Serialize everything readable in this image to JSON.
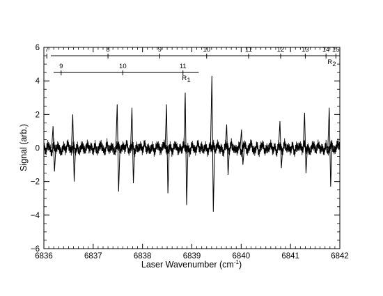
{
  "chart_data": {
    "type": "line",
    "title": "",
    "xlabel": "Laser Wavenumber (cm",
    "xlabel_sup": "-1",
    "xlabel_close": ")",
    "ylabel": "Signal (arb.)",
    "xlim": [
      6836,
      6842
    ],
    "ylim": [
      -6,
      6
    ],
    "x_ticks": [
      6836,
      6837,
      6838,
      6839,
      6840,
      6841,
      6842
    ],
    "x_tick_labels": [
      "6836",
      "6837",
      "6838",
      "6839",
      "6840",
      "6841",
      "6842"
    ],
    "y_ticks": [
      -6,
      -4,
      -2,
      0,
      2,
      4,
      6
    ],
    "y_tick_labels": [
      "−6",
      "−4",
      "−2",
      "0",
      "2",
      "4",
      "6"
    ],
    "grid": false,
    "legend": "none",
    "trace_color": "#000000",
    "series": [
      {
        "x": [
          6836.0,
          6836.04,
          6836.08,
          6836.12,
          6836.16,
          6836.2,
          6836.24,
          6836.28,
          6836.32,
          6836.36,
          6836.4,
          6836.44,
          6836.48,
          6836.52,
          6836.56,
          6836.6,
          6836.64,
          6836.68,
          6836.72,
          6836.76,
          6836.8,
          6836.84,
          6836.88,
          6836.92,
          6836.96,
          6837.0,
          6837.04,
          6837.08,
          6837.12,
          6837.16,
          6837.2,
          6837.24,
          6837.28,
          6837.32,
          6837.36,
          6837.4,
          6837.44,
          6837.48,
          6837.52,
          6837.56,
          6837.6,
          6837.64,
          6837.68,
          6837.72,
          6837.76,
          6837.8,
          6837.84,
          6837.88,
          6837.92,
          6837.96,
          6838.0,
          6838.04,
          6838.08,
          6838.12,
          6838.16,
          6838.2,
          6838.24,
          6838.28,
          6838.32,
          6838.36,
          6838.4,
          6838.44,
          6838.48,
          6838.52,
          6838.56,
          6838.6,
          6838.64,
          6838.68,
          6838.72,
          6838.76,
          6838.8,
          6838.84,
          6838.88,
          6838.92,
          6838.96,
          6839.0,
          6839.04,
          6839.08,
          6839.12,
          6839.16,
          6839.2,
          6839.24,
          6839.28,
          6839.32,
          6839.36,
          6839.4,
          6839.44,
          6839.48,
          6839.52,
          6839.56,
          6839.6,
          6839.64,
          6839.68,
          6839.72,
          6839.76,
          6839.8,
          6839.84,
          6839.88,
          6839.92,
          6839.96,
          6840.0,
          6840.04,
          6840.08,
          6840.12,
          6840.16,
          6840.2,
          6840.24,
          6840.28,
          6840.32,
          6840.36,
          6840.4,
          6840.44,
          6840.48,
          6840.52,
          6840.56,
          6840.6,
          6840.64,
          6840.68,
          6840.72,
          6840.76,
          6840.8,
          6840.84,
          6840.88,
          6840.92,
          6840.96,
          6841.0,
          6841.04,
          6841.08,
          6841.12,
          6841.16,
          6841.2,
          6841.24,
          6841.28,
          6841.32,
          6841.36,
          6841.4,
          6841.44,
          6841.48,
          6841.52,
          6841.56,
          6841.6,
          6841.64,
          6841.68,
          6841.72,
          6841.76,
          6841.8,
          6841.84,
          6841.88,
          6841.92,
          6841.96,
          6842.0
        ],
        "y": [
          0.1,
          -0.2,
          0.2,
          0.0,
          -0.3,
          0.3,
          -0.2,
          0.2,
          -0.1,
          -0.3,
          0.2,
          -0.2,
          0.3,
          0.0,
          -0.2,
          0.2,
          -0.2,
          0.1,
          -0.3,
          0.2,
          0.0,
          -0.2,
          0.3,
          -0.1,
          0.1,
          -0.2,
          0.2,
          -0.3,
          0.1,
          0.2,
          -0.1,
          -0.2,
          0.3,
          -0.2,
          0.1,
          0.0,
          -0.3,
          0.2,
          0.1,
          -0.2,
          0.2,
          -0.1,
          0.3,
          -0.2,
          0.0,
          0.2,
          -0.3,
          0.1,
          -0.1,
          0.2,
          -0.2,
          0.3,
          -0.1,
          0.0,
          -0.2,
          0.2,
          -0.3,
          0.1,
          0.2,
          -0.2,
          0.0,
          0.3,
          -0.1,
          -0.2,
          0.2,
          -0.3,
          0.1,
          0.2,
          -0.2,
          0.0,
          -0.1,
          0.3,
          -0.2,
          0.1,
          -0.3,
          0.2,
          0.0,
          -0.2,
          0.3,
          -0.1,
          0.1,
          -0.2,
          0.2,
          -0.3,
          0.1,
          0.0,
          0.2,
          -0.2,
          0.3,
          -0.1,
          0.0,
          -0.3,
          0.2,
          0.1,
          -0.2,
          0.3,
          -0.1,
          0.0,
          -0.2,
          0.2,
          -0.3,
          0.1,
          0.2,
          -0.2,
          0.0,
          0.3,
          -0.1,
          -0.2,
          0.2,
          -0.3,
          0.1,
          0.2,
          -0.2,
          0.0,
          -0.1,
          0.3,
          -0.2,
          0.1,
          -0.3,
          0.2,
          0.0,
          -0.2,
          0.3,
          -0.1,
          0.1,
          -0.2,
          0.2,
          -0.3,
          0.1,
          0.0,
          0.2,
          -0.2,
          0.3,
          -0.1,
          0.0,
          -0.3,
          0.2,
          0.1,
          -0.2,
          0.3,
          -0.1,
          0.0,
          -0.2,
          0.2,
          -0.3,
          0.1,
          0.2,
          -0.2,
          0.0,
          0.3,
          0.0
        ]
      }
    ],
    "peaks": [
      {
        "x": 6836.2,
        "max": 1.3,
        "min": -1.4
      },
      {
        "x": 6836.6,
        "max": 2.0,
        "min": -2.0
      },
      {
        "x": 6837.5,
        "max": 2.6,
        "min": -2.6
      },
      {
        "x": 6837.8,
        "max": 2.4,
        "min": -2.1
      },
      {
        "x": 6838.5,
        "max": 2.6,
        "min": -2.7
      },
      {
        "x": 6838.88,
        "max": 3.3,
        "min": -3.4
      },
      {
        "x": 6839.42,
        "max": 4.3,
        "min": -3.8
      },
      {
        "x": 6839.72,
        "max": 1.4,
        "min": -1.6
      },
      {
        "x": 6840.02,
        "max": 1.1,
        "min": -1.0
      },
      {
        "x": 6840.8,
        "max": 1.6,
        "min": -1.2
      },
      {
        "x": 6841.3,
        "max": 2.1,
        "min": -1.5
      },
      {
        "x": 6841.8,
        "max": 2.4,
        "min": -2.3
      }
    ],
    "annotations": {
      "R2": {
        "label": "R",
        "sub": "2",
        "y": 5.5,
        "ticks": [
          {
            "label": "7",
            "x": 6836.06
          },
          {
            "label": "8",
            "x": 6837.3
          },
          {
            "label": "9",
            "x": 6838.35
          },
          {
            "label": "10",
            "x": 6839.3
          },
          {
            "label": "11",
            "x": 6840.15
          },
          {
            "label": "12",
            "x": 6840.8
          },
          {
            "label": "13",
            "x": 6841.3
          },
          {
            "label": "14",
            "x": 6841.72
          },
          {
            "label": "15",
            "x": 6841.92
          }
        ]
      },
      "R1": {
        "label": "R",
        "sub": "1",
        "y": 4.5,
        "x_start": 6836.0,
        "x_end": 6839.0,
        "ticks": [
          {
            "label": "9",
            "x": 6836.35
          },
          {
            "label": "10",
            "x": 6837.6
          },
          {
            "label": "11",
            "x": 6838.82
          }
        ]
      }
    }
  }
}
